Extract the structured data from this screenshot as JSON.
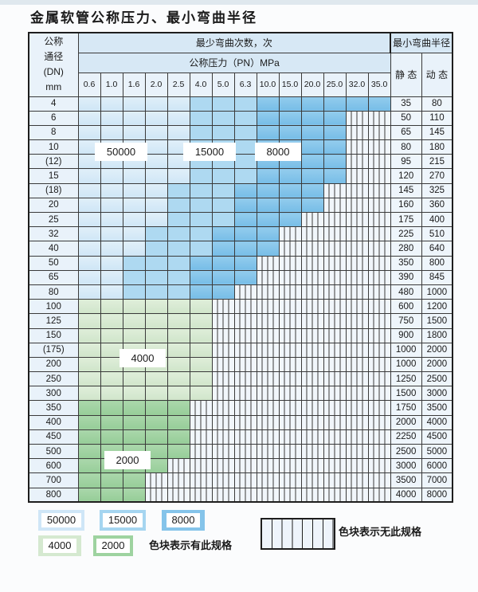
{
  "title": "金属软管公称压力、最小弯曲半径",
  "table": {
    "dn_header_lines": [
      "公称",
      "通径",
      "(DN)",
      "mm"
    ],
    "bend_times_header": "最少弯曲次数，次",
    "pressure_header": "公称压力（PN）MPa",
    "radius_header": "最小弯曲半径",
    "static_label": "静 态",
    "dynamic_label": "动 态",
    "pressures": [
      "0.6",
      "1.0",
      "1.6",
      "2.0",
      "2.5",
      "4.0",
      "5.0",
      "6.3",
      "10.0",
      "15.0",
      "20.0",
      "25.0",
      "32.0",
      "35.0"
    ],
    "rows": [
      {
        "dn": "4",
        "zones": [
          [
            5,
            "b1"
          ],
          [
            3,
            "b2"
          ],
          [
            6,
            "b3"
          ]
        ],
        "static": "35",
        "dynamic": "80"
      },
      {
        "dn": "6",
        "zones": [
          [
            5,
            "b1"
          ],
          [
            3,
            "b2"
          ],
          [
            4,
            "b3"
          ]
        ],
        "static": "50",
        "dynamic": "110"
      },
      {
        "dn": "8",
        "zones": [
          [
            5,
            "b1"
          ],
          [
            3,
            "b2"
          ],
          [
            4,
            "b3"
          ]
        ],
        "static": "65",
        "dynamic": "145"
      },
      {
        "dn": "10",
        "zones": [
          [
            5,
            "b1"
          ],
          [
            3,
            "b2"
          ],
          [
            4,
            "b3"
          ]
        ],
        "static": "80",
        "dynamic": "180"
      },
      {
        "dn": "(12)",
        "zones": [
          [
            5,
            "b1"
          ],
          [
            3,
            "b2"
          ],
          [
            4,
            "b3"
          ]
        ],
        "static": "95",
        "dynamic": "215"
      },
      {
        "dn": "15",
        "zones": [
          [
            5,
            "b1"
          ],
          [
            3,
            "b2"
          ],
          [
            4,
            "b3"
          ]
        ],
        "static": "120",
        "dynamic": "270"
      },
      {
        "dn": "(18)",
        "zones": [
          [
            4,
            "b1"
          ],
          [
            3,
            "b2"
          ],
          [
            4,
            "b3"
          ]
        ],
        "static": "145",
        "dynamic": "325"
      },
      {
        "dn": "20",
        "zones": [
          [
            4,
            "b1"
          ],
          [
            3,
            "b2"
          ],
          [
            4,
            "b3"
          ]
        ],
        "static": "160",
        "dynamic": "360"
      },
      {
        "dn": "25",
        "zones": [
          [
            4,
            "b1"
          ],
          [
            3,
            "b2"
          ],
          [
            3,
            "b3"
          ]
        ],
        "static": "175",
        "dynamic": "400"
      },
      {
        "dn": "32",
        "zones": [
          [
            3,
            "b1"
          ],
          [
            3,
            "b2"
          ],
          [
            3,
            "b3"
          ]
        ],
        "static": "225",
        "dynamic": "510"
      },
      {
        "dn": "40",
        "zones": [
          [
            3,
            "b1"
          ],
          [
            3,
            "b2"
          ],
          [
            3,
            "b3"
          ]
        ],
        "static": "280",
        "dynamic": "640"
      },
      {
        "dn": "50",
        "zones": [
          [
            2,
            "b1"
          ],
          [
            3,
            "b2"
          ],
          [
            3,
            "b3"
          ]
        ],
        "static": "350",
        "dynamic": "800"
      },
      {
        "dn": "65",
        "zones": [
          [
            2,
            "b1"
          ],
          [
            3,
            "b2"
          ],
          [
            3,
            "b3"
          ]
        ],
        "static": "390",
        "dynamic": "845"
      },
      {
        "dn": "80",
        "zones": [
          [
            2,
            "b1"
          ],
          [
            3,
            "b2"
          ],
          [
            2,
            "b3"
          ]
        ],
        "static": "480",
        "dynamic": "1000"
      },
      {
        "dn": "100",
        "zones": [
          [
            6,
            "g1"
          ]
        ],
        "static": "600",
        "dynamic": "1200"
      },
      {
        "dn": "125",
        "zones": [
          [
            6,
            "g1"
          ]
        ],
        "static": "750",
        "dynamic": "1500"
      },
      {
        "dn": "150",
        "zones": [
          [
            6,
            "g1"
          ]
        ],
        "static": "900",
        "dynamic": "1800"
      },
      {
        "dn": "(175)",
        "zones": [
          [
            6,
            "g1"
          ]
        ],
        "static": "1000",
        "dynamic": "2000"
      },
      {
        "dn": "200",
        "zones": [
          [
            6,
            "g1"
          ]
        ],
        "static": "1000",
        "dynamic": "2000"
      },
      {
        "dn": "250",
        "zones": [
          [
            6,
            "g1"
          ]
        ],
        "static": "1250",
        "dynamic": "2500"
      },
      {
        "dn": "300",
        "zones": [
          [
            6,
            "g1"
          ]
        ],
        "static": "1500",
        "dynamic": "3000"
      },
      {
        "dn": "350",
        "zones": [
          [
            5,
            "g2"
          ]
        ],
        "static": "1750",
        "dynamic": "3500"
      },
      {
        "dn": "400",
        "zones": [
          [
            5,
            "g2"
          ]
        ],
        "static": "2000",
        "dynamic": "4000"
      },
      {
        "dn": "450",
        "zones": [
          [
            5,
            "g2"
          ]
        ],
        "static": "2250",
        "dynamic": "4500"
      },
      {
        "dn": "500",
        "zones": [
          [
            5,
            "g2"
          ]
        ],
        "static": "2500",
        "dynamic": "5000"
      },
      {
        "dn": "600",
        "zones": [
          [
            4,
            "g2"
          ]
        ],
        "static": "3000",
        "dynamic": "6000"
      },
      {
        "dn": "700",
        "zones": [
          [
            3,
            "g2"
          ]
        ],
        "static": "3500",
        "dynamic": "7000"
      },
      {
        "dn": "800",
        "zones": [
          [
            3,
            "g2"
          ]
        ],
        "static": "4000",
        "dynamic": "8000"
      }
    ]
  },
  "zone_labels": {
    "l50000": "50000",
    "l15000": "15000",
    "l8000": "8000",
    "l4000": "4000",
    "l2000": "2000"
  },
  "legend": {
    "chips": [
      {
        "text": "50000",
        "color": "#cfe6f7"
      },
      {
        "text": "15000",
        "color": "#a5d5f0"
      },
      {
        "text": "8000",
        "color": "#85c4ea"
      },
      {
        "text": "4000",
        "color": "#d5e9d0"
      },
      {
        "text": "2000",
        "color": "#9ed3a0"
      }
    ],
    "has_spec_text": "色块表示有此规格",
    "no_spec_text": "色块表示无此规格"
  },
  "colors": {
    "zone_50000": "#cfe6f6",
    "zone_15000": "#aed9f1",
    "zone_8000": "#85c4ea",
    "zone_4000": "#d8ead2",
    "zone_2000": "#a0d2a1",
    "striped_bg": "#f1f6fb",
    "header_bg": "#d7e8f5"
  }
}
